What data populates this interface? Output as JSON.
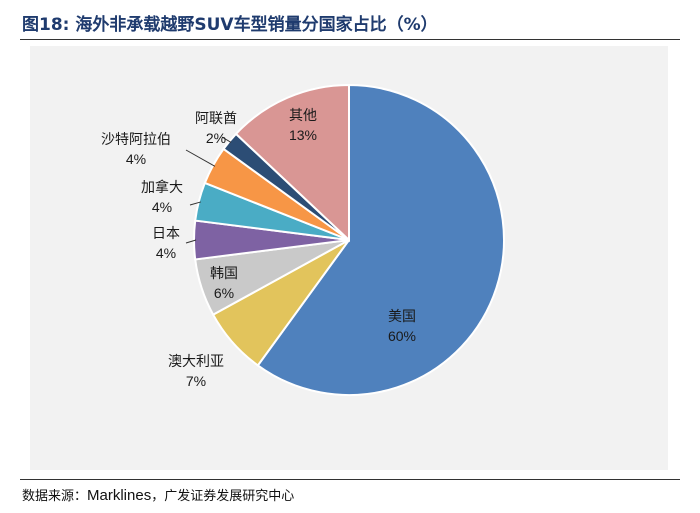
{
  "figure": {
    "title": "图18:  海外非承载越野SUV车型销量分国家占比（%）",
    "source_prefix": "数据来源：",
    "source_brand": "Marklines",
    "source_suffix": "，广发证券发展研究中心"
  },
  "chart_data": {
    "type": "pie",
    "title": "海外非承载越野SUV车型销量分国家占比（%）",
    "slices": [
      {
        "label": "美国",
        "value": 60,
        "display": "60%",
        "color": "#4f81bd"
      },
      {
        "label": "澳大利亚",
        "value": 7,
        "display": "7%",
        "color": "#e2c45c"
      },
      {
        "label": "韩国",
        "value": 6,
        "display": "6%",
        "color": "#c9c9c9"
      },
      {
        "label": "日本",
        "value": 4,
        "display": "4%",
        "color": "#7e62a3"
      },
      {
        "label": "加拿大",
        "value": 4,
        "display": "4%",
        "color": "#4aacc5"
      },
      {
        "label": "沙特阿拉伯",
        "value": 4,
        "display": "4%",
        "color": "#f79646"
      },
      {
        "label": "阿联酋",
        "value": 2,
        "display": "2%",
        "color": "#2c4d75"
      },
      {
        "label": "其他",
        "value": 13,
        "display": "13%",
        "color": "#d99694"
      }
    ],
    "start": "12 o'clock",
    "direction": "clockwise"
  }
}
